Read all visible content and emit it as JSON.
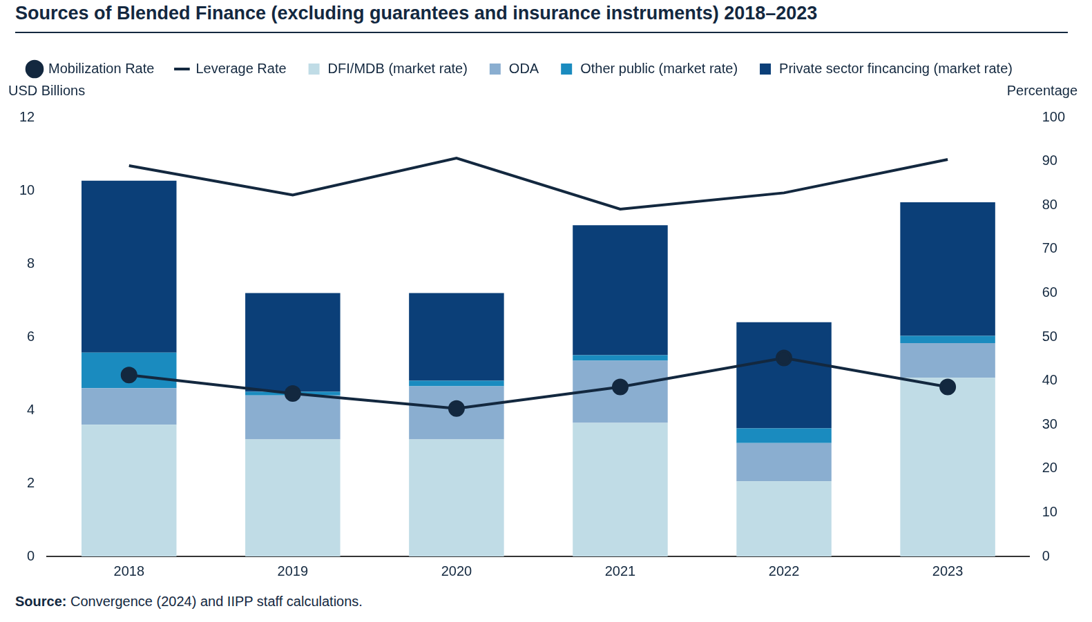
{
  "chart_data": {
    "type": "bar",
    "title": "Sources of Blended Finance (excluding guarantees and insurance instruments) 2018–2023",
    "y_label": "USD Billions",
    "y2_label": "Percentage",
    "source": "Source: Convergence (2024) and IIPP staff calculations.",
    "categories": [
      "2018",
      "2019",
      "2020",
      "2021",
      "2022",
      "2023"
    ],
    "series": [
      {
        "name": "DFI/MDB (market rate)",
        "color": "#c0dce6",
        "type": "bar",
        "values": [
          3.6,
          3.2,
          3.2,
          3.65,
          2.05,
          4.88
        ]
      },
      {
        "name": "ODA",
        "color": "#8aaed0",
        "type": "bar",
        "values": [
          1.0,
          1.2,
          1.45,
          1.7,
          1.05,
          0.95
        ]
      },
      {
        "name": "Other public (market rate)",
        "color": "#1a8bbf",
        "type": "bar",
        "values": [
          0.97,
          0.1,
          0.15,
          0.15,
          0.4,
          0.2
        ]
      },
      {
        "name": "Private sector fincancing (market rate)",
        "color": "#0b3f78",
        "type": "bar",
        "values": [
          4.7,
          2.7,
          2.4,
          3.55,
          2.9,
          3.65
        ]
      },
      {
        "name": "Mobilization Rate",
        "color": "#13283f",
        "type": "line",
        "marker": "circle",
        "line_style": "solid",
        "axis": "y2",
        "values": [
          41.3,
          37.1,
          33.7,
          38.6,
          45.2,
          38.6
        ]
      },
      {
        "name": "Leverage Rate",
        "color": "#13283f",
        "type": "line",
        "marker": "none",
        "line_style": "solid",
        "axis": "y2",
        "values": [
          89,
          82.3,
          90.7,
          79.1,
          82.8,
          90.4
        ]
      }
    ],
    "stacked": true,
    "ylim": [
      0,
      12
    ],
    "yticks": [
      0,
      2,
      4,
      6,
      8,
      10,
      12
    ],
    "y2lim": [
      0,
      100
    ],
    "y2ticks": [
      0,
      10,
      20,
      30,
      40,
      50,
      60,
      70,
      80,
      90,
      100
    ],
    "grid": false,
    "legend": "top"
  }
}
